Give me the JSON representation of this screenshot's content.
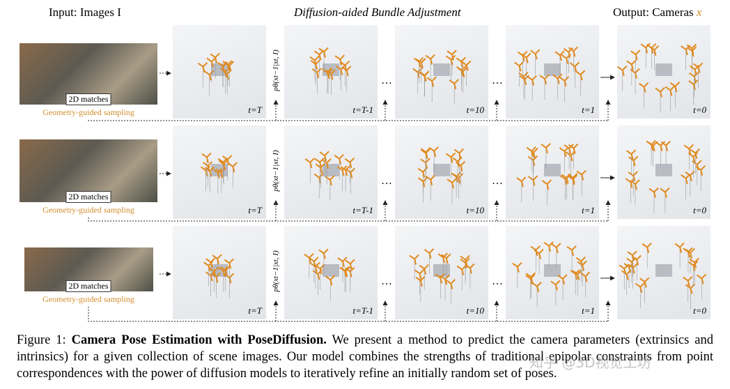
{
  "header": {
    "input": "Input: Images I",
    "middle": "Diffusion-aided Bundle Adjustment",
    "output_prefix": "Output: Cameras",
    "output_var": "x"
  },
  "rows": [
    {
      "matches_label": "2D matches",
      "sampling_label": "Geometry-guided sampling",
      "transition": "pθ(xt−1|xt, I)",
      "ellipses": [
        "…",
        "…"
      ],
      "steps": [
        "t=T",
        "t=T-1",
        "t=10",
        "t=1",
        "t=0"
      ]
    },
    {
      "matches_label": "2D matches",
      "sampling_label": "Geometry-guided sampling",
      "transition": "pθ(xt−1|xt, I)",
      "ellipses": [
        "…",
        "…"
      ],
      "steps": [
        "t=T",
        "t=T-1",
        "t=10",
        "t=1",
        "t=0"
      ]
    },
    {
      "matches_label": "2D matches",
      "sampling_label": "Geometry-guided sampling",
      "transition": "pθ(xt−1|xt, I)",
      "ellipses": [
        "…",
        "…"
      ],
      "steps": [
        "t=T",
        "t=T-1",
        "t=10",
        "t=1",
        "t=0"
      ]
    }
  ],
  "caption": {
    "label": "Figure 1:",
    "bold": "Camera Pose Estimation with PoseDiffusion.",
    "text": "We present a method to predict the camera parameters (extrinsics and intrinsics) for a given collection of scene images. Our model combines the strengths of traditional epipolar constraints from point correspondences with the power of diffusion models to iteratively refine an initially random set of poses."
  },
  "watermark": "知乎 @3D视觉工坊"
}
